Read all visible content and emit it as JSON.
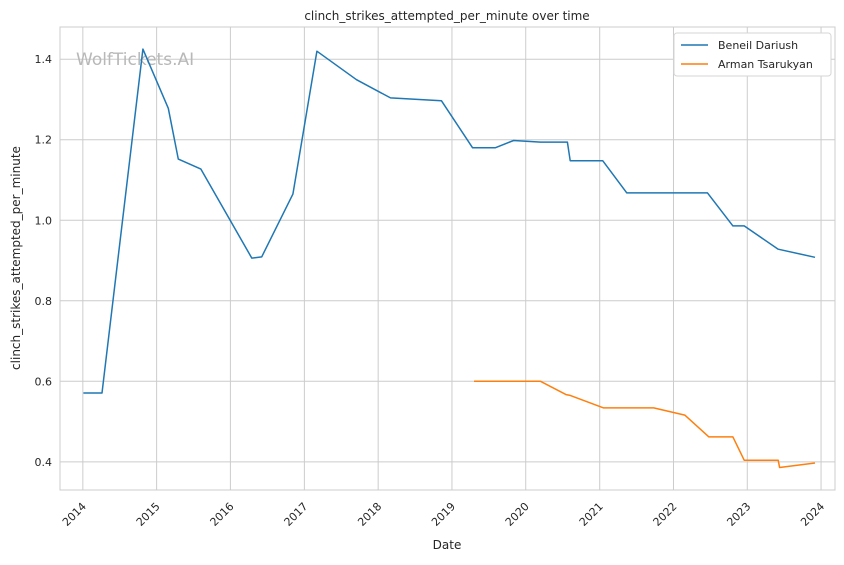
{
  "chart_data": {
    "type": "line",
    "title": "clinch_strikes_attempted_per_minute over time",
    "xlabel": "Date",
    "ylabel": "clinch_strikes_attempted_per_minute",
    "watermark": "WolfTickets.AI",
    "xlim": [
      "2013-09-10",
      "2024-03-10"
    ],
    "ylim": [
      0.33,
      1.48
    ],
    "x_ticks": [
      "2014",
      "2015",
      "2016",
      "2017",
      "2018",
      "2019",
      "2020",
      "2021",
      "2022",
      "2023",
      "2024"
    ],
    "y_ticks": [
      "0.4",
      "0.6",
      "0.8",
      "1.0",
      "1.2",
      "1.4"
    ],
    "grid": true,
    "legend_position": "top-right",
    "series": [
      {
        "name": "Beneil Dariush",
        "color": "#1f77b4",
        "x": [
          "2014-01-04",
          "2014-04-06",
          "2014-10-25",
          "2015-02-28",
          "2015-04-18",
          "2015-08-08",
          "2016-04-16",
          "2016-06-04",
          "2016-11-05",
          "2017-03-04",
          "2017-09-16",
          "2018-03-03",
          "2018-11-10",
          "2019-04-13",
          "2019-08-03",
          "2019-11-02",
          "2020-03-14",
          "2020-07-25",
          "2020-08-08",
          "2021-01-16",
          "2021-05-15",
          "2022-03-12",
          "2022-06-18",
          "2022-10-22",
          "2022-12-17",
          "2023-06-03",
          "2023-12-02"
        ],
        "y": [
          0.571,
          0.571,
          1.425,
          1.278,
          1.152,
          1.127,
          0.906,
          0.909,
          1.065,
          1.42,
          1.349,
          1.304,
          1.297,
          1.18,
          1.18,
          1.198,
          1.194,
          1.194,
          1.148,
          1.148,
          1.068,
          1.068,
          1.068,
          0.986,
          0.986,
          0.928,
          0.908
        ]
      },
      {
        "name": "Arman Tsarukyan",
        "color": "#ff7f0e",
        "x": [
          "2019-04-20",
          "2019-09-14",
          "2020-03-14",
          "2020-07-18",
          "2020-08-08",
          "2021-01-20",
          "2021-09-25",
          "2022-02-26",
          "2022-06-25",
          "2022-10-22",
          "2022-12-17",
          "2023-06-03",
          "2023-06-10",
          "2023-12-02"
        ],
        "y": [
          0.6,
          0.6,
          0.6,
          0.567,
          0.565,
          0.534,
          0.534,
          0.516,
          0.462,
          0.462,
          0.404,
          0.404,
          0.386,
          0.397
        ]
      }
    ]
  }
}
